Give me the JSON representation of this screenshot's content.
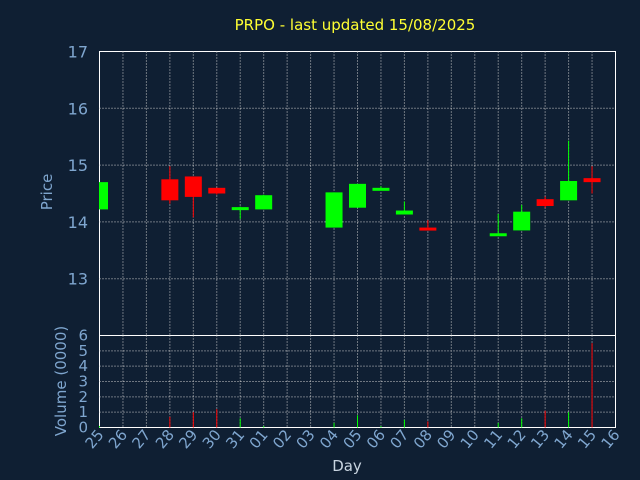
{
  "chart_data": {
    "type": "candlestick",
    "title": "PRPO - last updated 15/08/2025",
    "xlabel": "Day",
    "ylabel_price": "Price",
    "ylabel_volume": "Volume (0000)",
    "x_ticks": [
      "25",
      "26",
      "27",
      "28",
      "29",
      "30",
      "31",
      "01",
      "02",
      "03",
      "04",
      "05",
      "06",
      "07",
      "08",
      "09",
      "10",
      "11",
      "12",
      "13",
      "14",
      "15",
      "16"
    ],
    "price_ylim": [
      12.0,
      17.0
    ],
    "price_ticks": [
      "13",
      "14",
      "15",
      "16",
      "17"
    ],
    "volume_ylim": [
      0,
      6
    ],
    "volume_ticks": [
      "0",
      "1",
      "2",
      "3",
      "4",
      "5",
      "6"
    ],
    "grid": true,
    "colors": {
      "up": "#00ff00",
      "down": "#ff0000",
      "background": "#0f1f33",
      "title": "#ffff33",
      "axis": "#7fa6cf",
      "grid": "#cccccc"
    },
    "candles": [
      {
        "day": "25",
        "open": 14.22,
        "high": 14.7,
        "low": 14.22,
        "close": 14.7,
        "volume": 0.1
      },
      {
        "day": "28",
        "open": 14.75,
        "high": 14.98,
        "low": 14.32,
        "close": 14.38,
        "volume": 0.7
      },
      {
        "day": "29",
        "open": 14.8,
        "high": 14.8,
        "low": 14.08,
        "close": 14.44,
        "volume": 1.0
      },
      {
        "day": "30",
        "open": 14.6,
        "high": 14.6,
        "low": 14.48,
        "close": 14.5,
        "volume": 1.2
      },
      {
        "day": "31",
        "open": 14.22,
        "high": 14.27,
        "low": 14.05,
        "close": 14.26,
        "volume": 0.6
      },
      {
        "day": "01",
        "open": 14.22,
        "high": 14.48,
        "low": 14.22,
        "close": 14.47,
        "volume": 0.1
      },
      {
        "day": "04",
        "open": 13.9,
        "high": 14.52,
        "low": 13.9,
        "close": 14.52,
        "volume": 0.3
      },
      {
        "day": "05",
        "open": 14.25,
        "high": 14.67,
        "low": 14.25,
        "close": 14.67,
        "volume": 0.8
      },
      {
        "day": "06",
        "open": 14.58,
        "high": 14.63,
        "low": 14.57,
        "close": 14.6,
        "volume": 0.1
      },
      {
        "day": "07",
        "open": 14.13,
        "high": 14.36,
        "low": 14.13,
        "close": 14.2,
        "volume": 0.5
      },
      {
        "day": "08",
        "open": 13.9,
        "high": 14.03,
        "low": 13.85,
        "close": 13.88,
        "volume": 0.4
      },
      {
        "day": "11",
        "open": 13.78,
        "high": 14.14,
        "low": 13.77,
        "close": 13.8,
        "volume": 0.3
      },
      {
        "day": "12",
        "open": 13.85,
        "high": 14.3,
        "low": 13.85,
        "close": 14.18,
        "volume": 0.6
      },
      {
        "day": "13",
        "open": 14.4,
        "high": 14.45,
        "low": 14.25,
        "close": 14.28,
        "volume": 1.1
      },
      {
        "day": "14",
        "open": 14.38,
        "high": 15.43,
        "low": 14.38,
        "close": 14.72,
        "volume": 1.0
      },
      {
        "day": "15",
        "open": 14.77,
        "high": 14.98,
        "low": 14.5,
        "close": 14.7,
        "volume": 5.5
      }
    ]
  }
}
